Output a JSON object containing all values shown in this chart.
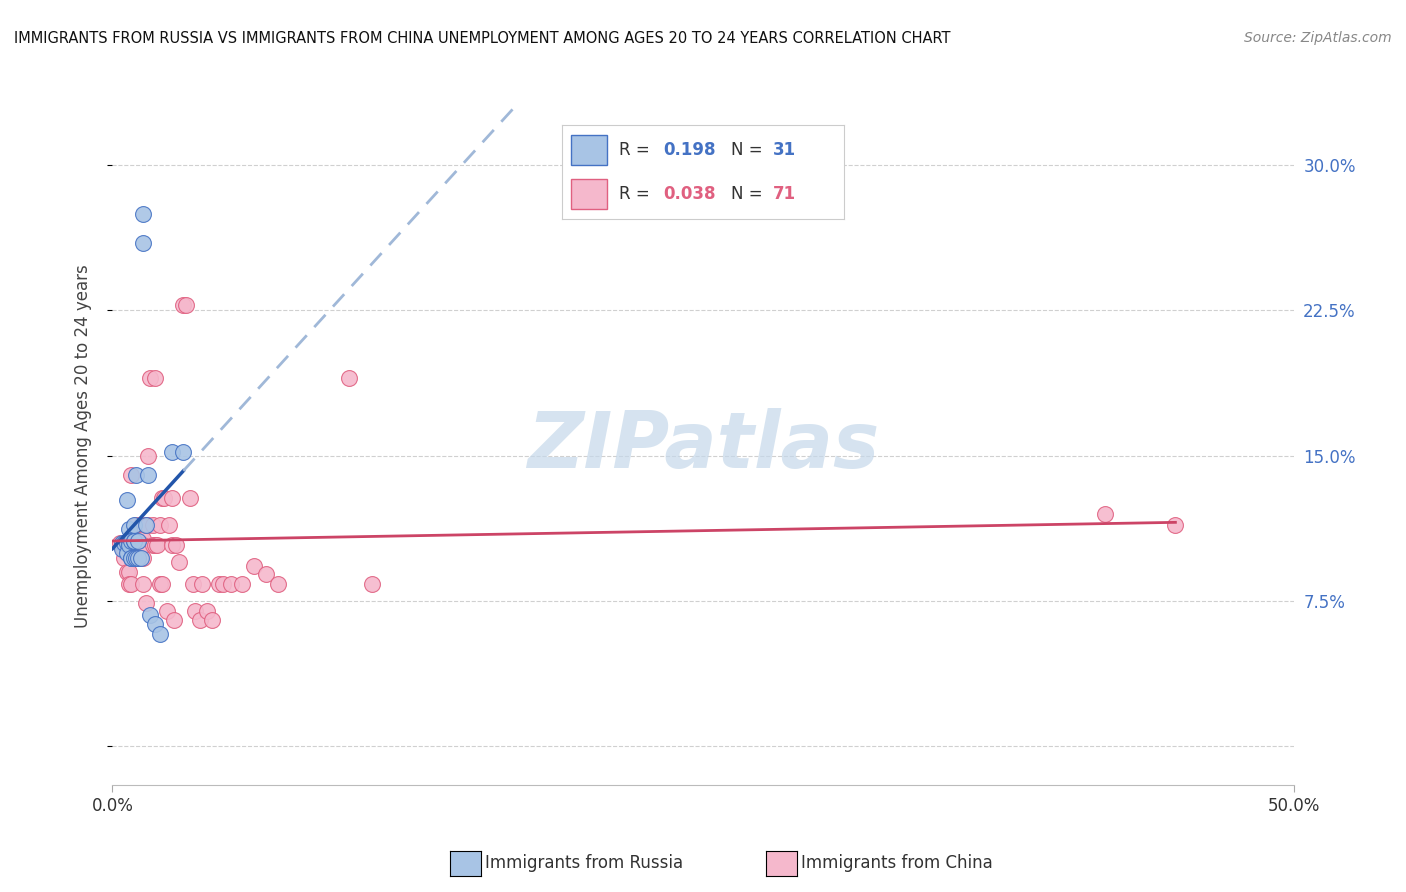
{
  "title": "IMMIGRANTS FROM RUSSIA VS IMMIGRANTS FROM CHINA UNEMPLOYMENT AMONG AGES 20 TO 24 YEARS CORRELATION CHART",
  "source": "Source: ZipAtlas.com",
  "ylabel": "Unemployment Among Ages 20 to 24 years",
  "y_tick_values": [
    0.0,
    0.075,
    0.15,
    0.225,
    0.3
  ],
  "y_tick_labels": [
    "",
    "7.5%",
    "15.0%",
    "22.5%",
    "30.0%"
  ],
  "xlim": [
    0.0,
    0.5
  ],
  "ylim": [
    -0.02,
    0.33
  ],
  "legend_russia_R": "0.198",
  "legend_russia_N": "31",
  "legend_china_R": "0.038",
  "legend_china_N": "71",
  "russia_fill_color": "#a8c4e5",
  "russia_edge_color": "#4472c4",
  "russia_line_color": "#2255aa",
  "russia_dash_color": "#a0b8d8",
  "china_fill_color": "#f5b8cc",
  "china_edge_color": "#e06080",
  "china_line_color": "#cc4466",
  "russia_scatter_x": [
    0.004,
    0.004,
    0.005,
    0.006,
    0.006,
    0.006,
    0.007,
    0.007,
    0.007,
    0.007,
    0.008,
    0.008,
    0.008,
    0.009,
    0.009,
    0.009,
    0.009,
    0.01,
    0.01,
    0.011,
    0.011,
    0.012,
    0.013,
    0.013,
    0.014,
    0.015,
    0.016,
    0.018,
    0.02,
    0.025,
    0.03
  ],
  "russia_scatter_y": [
    0.105,
    0.102,
    0.105,
    0.127,
    0.105,
    0.1,
    0.105,
    0.112,
    0.106,
    0.104,
    0.097,
    0.106,
    0.097,
    0.106,
    0.097,
    0.106,
    0.114,
    0.14,
    0.097,
    0.097,
    0.106,
    0.097,
    0.275,
    0.26,
    0.114,
    0.14,
    0.068,
    0.063,
    0.058,
    0.152,
    0.152
  ],
  "china_scatter_x": [
    0.003,
    0.004,
    0.005,
    0.005,
    0.006,
    0.006,
    0.006,
    0.007,
    0.007,
    0.007,
    0.008,
    0.008,
    0.008,
    0.009,
    0.009,
    0.009,
    0.009,
    0.01,
    0.01,
    0.01,
    0.011,
    0.011,
    0.012,
    0.012,
    0.012,
    0.013,
    0.013,
    0.013,
    0.013,
    0.014,
    0.014,
    0.015,
    0.015,
    0.016,
    0.017,
    0.017,
    0.018,
    0.018,
    0.019,
    0.02,
    0.02,
    0.021,
    0.021,
    0.022,
    0.023,
    0.024,
    0.025,
    0.025,
    0.026,
    0.027,
    0.028,
    0.03,
    0.031,
    0.033,
    0.034,
    0.035,
    0.037,
    0.038,
    0.04,
    0.042,
    0.045,
    0.047,
    0.05,
    0.055,
    0.06,
    0.065,
    0.07,
    0.1,
    0.11,
    0.42,
    0.45
  ],
  "china_scatter_y": [
    0.105,
    0.103,
    0.101,
    0.097,
    0.104,
    0.09,
    0.104,
    0.09,
    0.084,
    0.104,
    0.084,
    0.104,
    0.14,
    0.11,
    0.104,
    0.104,
    0.097,
    0.114,
    0.107,
    0.104,
    0.104,
    0.097,
    0.114,
    0.107,
    0.104,
    0.107,
    0.097,
    0.104,
    0.084,
    0.114,
    0.074,
    0.15,
    0.114,
    0.19,
    0.114,
    0.104,
    0.104,
    0.19,
    0.104,
    0.084,
    0.114,
    0.084,
    0.128,
    0.128,
    0.07,
    0.114,
    0.104,
    0.128,
    0.065,
    0.104,
    0.095,
    0.228,
    0.228,
    0.128,
    0.084,
    0.07,
    0.065,
    0.084,
    0.07,
    0.065,
    0.084,
    0.084,
    0.084,
    0.084,
    0.093,
    0.089,
    0.084,
    0.19,
    0.084,
    0.12,
    0.114
  ],
  "watermark_text": "ZIPatlas",
  "watermark_color": "#c5d8ea",
  "background_color": "#ffffff",
  "grid_color": "#d0d0d0"
}
